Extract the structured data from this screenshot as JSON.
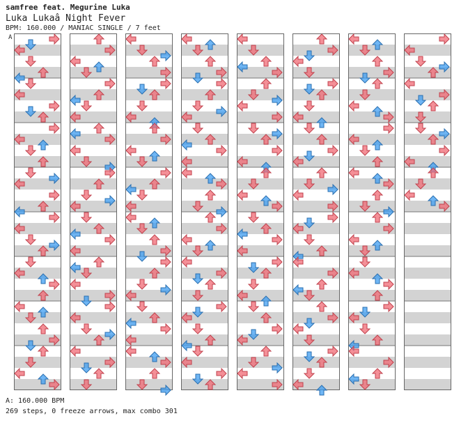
{
  "header": {
    "artist": "samfree feat. Megurine Luka",
    "title": "Luka Lukaâ  Night Fever",
    "meta": "BPM: 160.000 / MANIAC SINGLE / 7 feet"
  },
  "segment_label": "A",
  "footer": {
    "bpm": "A: 160.000 BPM",
    "stats": "269 steps, 0 freeze arrows, max combo 301"
  },
  "colors": {
    "quarter_arrow": "#f06a74",
    "eighth_arrow": "#3f9ef2",
    "stripe": "#d3d3d3",
    "background": "#ffffff"
  },
  "chart_data": {
    "type": "step-chart",
    "columns": 8,
    "measures_per_column": 8,
    "lanes": [
      "left",
      "down",
      "up",
      "right"
    ],
    "notes": [
      [
        [
          0,
          0,
          3
        ],
        [
          0,
          1,
          1
        ],
        [
          0,
          2,
          3
        ],
        [
          0,
          3,
          1
        ],
        [
          0,
          4,
          3
        ],
        [
          0,
          5,
          1
        ],
        [
          0,
          6,
          0
        ],
        [
          0,
          7,
          2
        ]
      ],
      [
        [
          1,
          0,
          1
        ],
        [
          1,
          1,
          2
        ],
        [
          1,
          2,
          1
        ],
        [
          1,
          3,
          2
        ],
        [
          1,
          4,
          0
        ],
        [
          1,
          5,
          1
        ],
        [
          1,
          6,
          2
        ],
        [
          1,
          7,
          3
        ]
      ],
      [
        [
          2,
          0,
          2
        ],
        [
          2,
          1,
          1
        ],
        [
          2,
          2,
          0
        ],
        [
          2,
          3,
          1
        ],
        [
          2,
          4,
          2
        ],
        [
          2,
          5,
          1
        ],
        [
          2,
          6,
          3
        ],
        [
          2,
          7,
          2
        ]
      ],
      [
        [
          3,
          0,
          1
        ],
        [
          3,
          1,
          0
        ],
        [
          3,
          2,
          2
        ],
        [
          3,
          3,
          1
        ],
        [
          3,
          4,
          3
        ],
        [
          3,
          5,
          1
        ],
        [
          3,
          6,
          0
        ],
        [
          3,
          7,
          2
        ]
      ],
      [
        [
          4,
          0,
          0
        ],
        [
          4,
          1,
          2
        ],
        [
          4,
          2,
          1
        ],
        [
          4,
          3,
          2
        ],
        [
          4,
          4,
          1
        ],
        [
          4,
          5,
          3
        ],
        [
          4,
          6,
          1
        ],
        [
          4,
          7,
          2
        ]
      ],
      [
        [
          5,
          0,
          1
        ],
        [
          5,
          1,
          2
        ],
        [
          5,
          2,
          0
        ],
        [
          5,
          3,
          1
        ],
        [
          5,
          4,
          2
        ],
        [
          5,
          5,
          3
        ],
        [
          5,
          6,
          1
        ],
        [
          5,
          7,
          2
        ]
      ],
      [
        [
          6,
          0,
          2
        ],
        [
          6,
          1,
          0
        ],
        [
          6,
          2,
          1
        ],
        [
          6,
          3,
          2
        ],
        [
          6,
          4,
          0
        ],
        [
          6,
          5,
          3
        ],
        [
          6,
          6,
          1
        ],
        [
          6,
          7,
          2
        ]
      ],
      [
        [
          7,
          0,
          0
        ],
        [
          7,
          1,
          1
        ],
        [
          7,
          2,
          2
        ],
        [
          7,
          3,
          3
        ]
      ]
    ]
  }
}
